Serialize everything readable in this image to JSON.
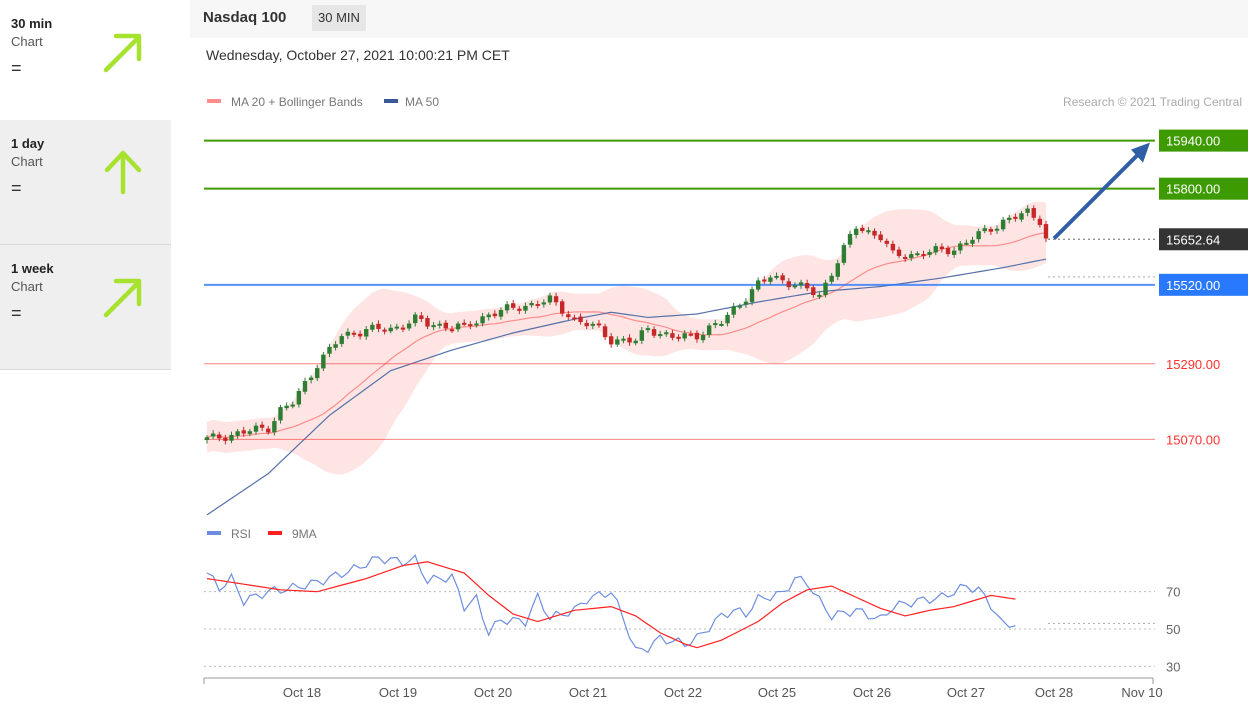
{
  "sidebar": {
    "items": [
      {
        "title": "30 min",
        "sub": "Chart",
        "sign": "=",
        "direction": "up-right"
      },
      {
        "title": "1 day",
        "sub": "Chart",
        "sign": "=",
        "direction": "up"
      },
      {
        "title": "1 week",
        "sub": "Chart",
        "sign": "=",
        "direction": "up-right"
      }
    ]
  },
  "header": {
    "title": "Nasdaq 100",
    "timeframe": "30 MIN",
    "datetime": "Wednesday, October 27, 2021 10:00:21 PM CET"
  },
  "colors": {
    "arrow": "#a6e22e",
    "resistance": "#3d9a00",
    "current": "#333333",
    "pivot": "#2979ff",
    "support": "#ff3030",
    "ma20": "#ff8c8c",
    "band": "#ffd9d9",
    "ma50": "#5570a8",
    "up_candle": "#2e7d32",
    "down_candle": "#c62828",
    "rsi": "#6d8ee0",
    "rsi_ma": "#ff2020",
    "target_arrow": "#2f5fa6"
  },
  "chart_data": [
    {
      "type": "candlestick",
      "title": "Nasdaq 100",
      "legend": [
        {
          "name": "MA 20 + Bollinger Bands",
          "color": "#ff8c8c"
        },
        {
          "name": "MA 50",
          "color": "#3b5998"
        }
      ],
      "copyright": "Research © 2021 Trading Central",
      "legend_position": "top-left",
      "x_ticks": [
        "Oct 18",
        "Oct 19",
        "Oct 20",
        "Oct 21",
        "Oct 22",
        "Oct 25",
        "Oct 26",
        "Oct 27",
        "Oct 28",
        "Nov 10"
      ],
      "ylim": [
        14870,
        16000
      ],
      "levels": [
        {
          "value": 15940,
          "label": "15940.00",
          "kind": "resistance"
        },
        {
          "value": 15800,
          "label": "15800.00",
          "kind": "resistance"
        },
        {
          "value": 15652.64,
          "label": "15652.64",
          "kind": "current"
        },
        {
          "value": 15520,
          "label": "15520.00",
          "kind": "pivot"
        },
        {
          "value": 15290,
          "label": "15290.00",
          "kind": "support"
        },
        {
          "value": 15070,
          "label": "15070.00",
          "kind": "support"
        }
      ],
      "close_anchors": [
        [
          0,
          15070
        ],
        [
          6,
          15090
        ],
        [
          10,
          15105
        ],
        [
          12,
          15155
        ],
        [
          14,
          15175
        ],
        [
          18,
          15290
        ],
        [
          22,
          15370
        ],
        [
          26,
          15390
        ],
        [
          30,
          15390
        ],
        [
          34,
          15420
        ],
        [
          36,
          15405
        ],
        [
          40,
          15400
        ],
        [
          42,
          15395
        ],
        [
          46,
          15435
        ],
        [
          52,
          15460
        ],
        [
          56,
          15475
        ],
        [
          60,
          15420
        ],
        [
          64,
          15390
        ],
        [
          66,
          15360
        ],
        [
          70,
          15355
        ],
        [
          72,
          15395
        ],
        [
          76,
          15365
        ],
        [
          80,
          15375
        ],
        [
          84,
          15410
        ],
        [
          86,
          15450
        ],
        [
          90,
          15520
        ],
        [
          92,
          15545
        ],
        [
          94,
          15535
        ],
        [
          96,
          15520
        ],
        [
          100,
          15490
        ],
        [
          106,
          15690
        ],
        [
          110,
          15660
        ],
        [
          112,
          15605
        ],
        [
          116,
          15610
        ],
        [
          118,
          15615
        ],
        [
          122,
          15625
        ],
        [
          126,
          15665
        ],
        [
          130,
          15705
        ],
        [
          134,
          15730
        ],
        [
          136,
          15710
        ],
        [
          137,
          15655
        ]
      ],
      "ma50_anchors": [
        [
          0,
          14850
        ],
        [
          10,
          14970
        ],
        [
          20,
          15140
        ],
        [
          30,
          15270
        ],
        [
          40,
          15330
        ],
        [
          50,
          15380
        ],
        [
          60,
          15420
        ],
        [
          66,
          15440
        ],
        [
          72,
          15425
        ],
        [
          80,
          15435
        ],
        [
          90,
          15470
        ],
        [
          100,
          15500
        ],
        [
          110,
          15515
        ],
        [
          120,
          15540
        ],
        [
          130,
          15570
        ],
        [
          137,
          15595
        ]
      ],
      "rsi": {
        "legend": [
          {
            "name": "RSI",
            "color": "#6d8ee0"
          },
          {
            "name": "9MA",
            "color": "#ff2020"
          }
        ],
        "ylim": [
          20,
          95
        ],
        "levels": [
          70,
          50,
          30
        ],
        "rsi_anchors": [
          [
            0,
            80
          ],
          [
            2,
            72
          ],
          [
            4,
            77
          ],
          [
            6,
            65
          ],
          [
            10,
            70
          ],
          [
            14,
            72
          ],
          [
            18,
            75
          ],
          [
            24,
            82
          ],
          [
            28,
            88
          ],
          [
            32,
            86
          ],
          [
            34,
            87
          ],
          [
            36,
            76
          ],
          [
            40,
            78
          ],
          [
            42,
            62
          ],
          [
            44,
            66
          ],
          [
            46,
            48
          ],
          [
            48,
            55
          ],
          [
            52,
            54
          ],
          [
            54,
            67
          ],
          [
            56,
            56
          ],
          [
            60,
            60
          ],
          [
            62,
            66
          ],
          [
            66,
            70
          ],
          [
            68,
            56
          ],
          [
            70,
            38
          ],
          [
            72,
            40
          ],
          [
            74,
            45
          ],
          [
            78,
            42
          ],
          [
            80,
            45
          ],
          [
            84,
            57
          ],
          [
            86,
            60
          ],
          [
            88,
            58
          ],
          [
            90,
            66
          ],
          [
            94,
            69
          ],
          [
            96,
            77
          ],
          [
            98,
            75
          ],
          [
            100,
            65
          ],
          [
            102,
            57
          ],
          [
            106,
            60
          ],
          [
            110,
            55
          ],
          [
            112,
            62
          ],
          [
            116,
            65
          ],
          [
            120,
            67
          ],
          [
            124,
            73
          ],
          [
            126,
            71
          ],
          [
            128,
            63
          ],
          [
            130,
            52
          ],
          [
            132,
            53
          ]
        ],
        "ma_anchors": [
          [
            0,
            77
          ],
          [
            6,
            74
          ],
          [
            12,
            71
          ],
          [
            18,
            70
          ],
          [
            26,
            77
          ],
          [
            32,
            84
          ],
          [
            36,
            86
          ],
          [
            42,
            80
          ],
          [
            46,
            68
          ],
          [
            50,
            58
          ],
          [
            54,
            54
          ],
          [
            60,
            60
          ],
          [
            66,
            62
          ],
          [
            70,
            57
          ],
          [
            74,
            48
          ],
          [
            78,
            42
          ],
          [
            80,
            40
          ],
          [
            84,
            44
          ],
          [
            90,
            54
          ],
          [
            94,
            64
          ],
          [
            98,
            71
          ],
          [
            102,
            73
          ],
          [
            106,
            67
          ],
          [
            110,
            61
          ],
          [
            114,
            57
          ],
          [
            118,
            60
          ],
          [
            122,
            62
          ],
          [
            126,
            66
          ],
          [
            128,
            68
          ],
          [
            132,
            66
          ]
        ]
      }
    }
  ]
}
